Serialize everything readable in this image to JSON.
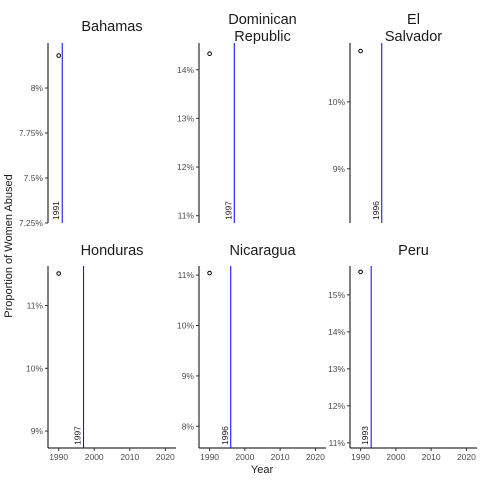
{
  "chart_data": {
    "type": "scatter",
    "xlabel": "Year",
    "ylabel": "Proportion of Women Abused",
    "xlim": [
      1987,
      2023
    ],
    "x_ticks": [
      1990,
      2000,
      2010,
      2020
    ],
    "x_tick_labels": [
      "1990",
      "2000",
      "2010",
      "2020"
    ],
    "x_tick_label_rows": [
      "bottom"
    ],
    "line_color": "#0000ff",
    "point_style": "hollow circle",
    "facets": [
      {
        "title_lines": [
          "Bahamas"
        ],
        "ylim": [
          0.0725,
          0.0825
        ],
        "y_ticks": [
          0.0725,
          0.075,
          0.0775,
          0.08
        ],
        "y_tick_labels": [
          "7.25%",
          "7.5%",
          "7.75%",
          "8%"
        ],
        "points": [
          {
            "x": 1990,
            "y": 0.0818
          }
        ],
        "vline": {
          "x": 1991,
          "label": "1991"
        }
      },
      {
        "title_lines": [
          "Dominican",
          "Republic"
        ],
        "ylim": [
          0.1085,
          0.1455
        ],
        "y_ticks": [
          0.11,
          0.12,
          0.13,
          0.14
        ],
        "y_tick_labels": [
          "11%",
          "12%",
          "13%",
          "14%"
        ],
        "points": [
          {
            "x": 1990,
            "y": 0.1433
          }
        ],
        "vline": {
          "x": 1997,
          "label": "1997"
        }
      },
      {
        "title_lines": [
          "El",
          "Salvador"
        ],
        "ylim": [
          0.0819,
          0.1088
        ],
        "y_ticks": [
          0.09,
          0.1
        ],
        "y_tick_labels": [
          "9%",
          "10%"
        ],
        "points": [
          {
            "x": 1990,
            "y": 0.1076
          }
        ],
        "vline": {
          "x": 1996,
          "label": "1996"
        }
      },
      {
        "title_lines": [
          "Honduras"
        ],
        "ylim": [
          0.0873,
          0.1163
        ],
        "y_ticks": [
          0.09,
          0.1,
          0.11
        ],
        "y_tick_labels": [
          "9%",
          "10%",
          "11%"
        ],
        "points": [
          {
            "x": 1990,
            "y": 0.1151
          }
        ],
        "vline": {
          "x": 1997,
          "label": "1997"
        }
      },
      {
        "title_lines": [
          "Nicaragua"
        ],
        "ylim": [
          0.0757,
          0.1118
        ],
        "y_ticks": [
          0.08,
          0.09,
          0.1,
          0.11
        ],
        "y_tick_labels": [
          "8%",
          "9%",
          "10%",
          "11%"
        ],
        "points": [
          {
            "x": 1990,
            "y": 0.1104
          }
        ],
        "vline": {
          "x": 1996,
          "label": "1996"
        }
      },
      {
        "title_lines": [
          "Peru"
        ],
        "ylim": [
          0.1086,
          0.1578
        ],
        "y_ticks": [
          0.11,
          0.12,
          0.13,
          0.14,
          0.15
        ],
        "y_tick_labels": [
          "11%",
          "12%",
          "13%",
          "14%",
          "15%"
        ],
        "points": [
          {
            "x": 1990,
            "y": 0.1562
          }
        ],
        "vline": {
          "x": 1993,
          "label": "1993"
        }
      }
    ]
  }
}
